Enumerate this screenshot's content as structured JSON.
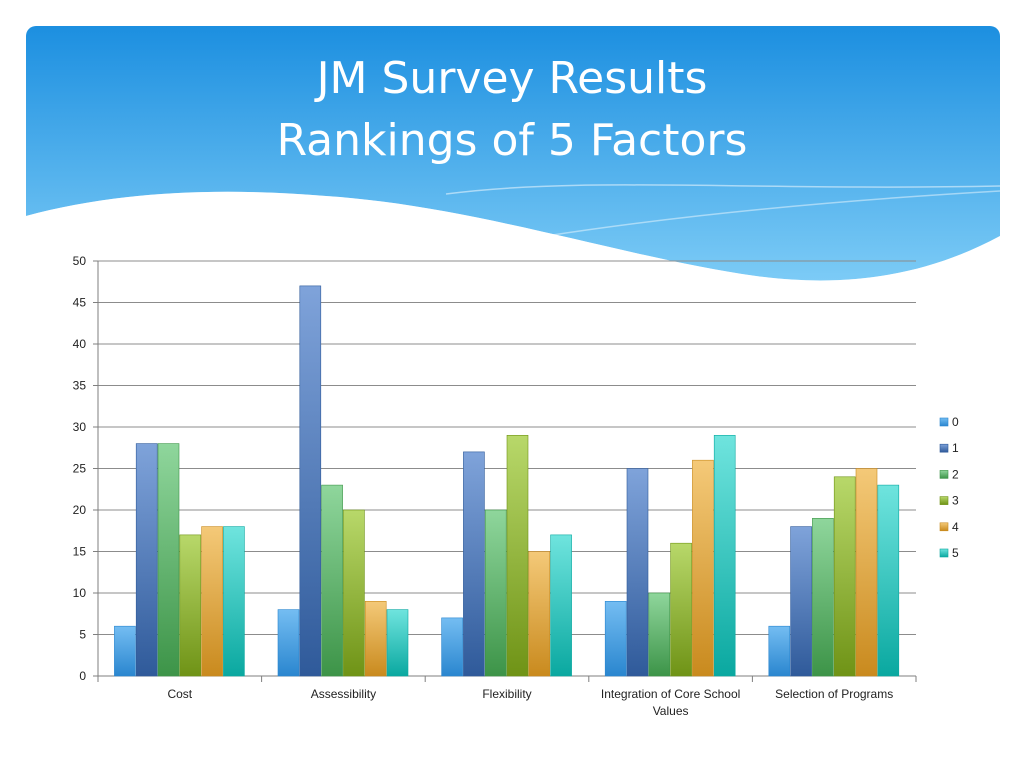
{
  "slide": {
    "title_line1": "JM Survey Results",
    "title_line2": "Rankings of 5 Factors"
  },
  "colors": {
    "header_top": "#1c8fe0",
    "header_bottom": "#7ccbf6",
    "gridline": "#8c8c8c",
    "axis": "#7f7f7f"
  },
  "chart_data": {
    "type": "bar",
    "title": "",
    "xlabel": "",
    "ylabel": "",
    "ylim": [
      0,
      50
    ],
    "yticks": [
      0,
      5,
      10,
      15,
      20,
      25,
      30,
      35,
      40,
      45,
      50
    ],
    "grid": true,
    "legend_position": "right",
    "categories": [
      [
        "Cost"
      ],
      [
        "Assessibility"
      ],
      [
        "Flexibility"
      ],
      [
        "Integration of Core School",
        "Values"
      ],
      [
        "Selection of Programs"
      ]
    ],
    "series": [
      {
        "name": "0",
        "light": "#74bdf2",
        "dark": "#2a86cf",
        "values": [
          6,
          8,
          7,
          9,
          6
        ]
      },
      {
        "name": "1",
        "light": "#7fa3da",
        "dark": "#2f5a9a",
        "values": [
          28,
          47,
          27,
          25,
          18
        ]
      },
      {
        "name": "2",
        "light": "#8fd69c",
        "dark": "#3d9448",
        "values": [
          28,
          23,
          20,
          10,
          19
        ]
      },
      {
        "name": "3",
        "light": "#b8d86a",
        "dark": "#6f9316",
        "values": [
          17,
          20,
          29,
          16,
          24
        ]
      },
      {
        "name": "4",
        "light": "#f4c978",
        "dark": "#c98a1e",
        "values": [
          18,
          9,
          15,
          26,
          25
        ]
      },
      {
        "name": "5",
        "light": "#6fe4de",
        "dark": "#0aa8a0",
        "values": [
          18,
          8,
          17,
          29,
          23
        ]
      }
    ]
  }
}
